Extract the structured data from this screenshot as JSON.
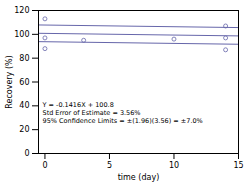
{
  "chart_data": {
    "type": "scatter",
    "xlabel": "time (day)",
    "ylabel": "Recovery (%)",
    "xlim": [
      -0.5,
      15
    ],
    "ylim": [
      0,
      120
    ],
    "xticks": [
      0,
      5,
      10,
      15
    ],
    "yticks": [
      0,
      20,
      40,
      60,
      80,
      100,
      120
    ],
    "annotation": "Y = -0.1416X + 100.8\nStd Error of Estimate = 3.56%\n95% Confidence Limits = ±(1.96)(3.56) = ±7.0%",
    "series": [
      {
        "type": "line",
        "line_style": "solid",
        "color": "#6666aa",
        "x": [
          -0.5,
          15
        ],
        "values": [
          107.8708,
          105.676
        ]
      },
      {
        "type": "line",
        "line_style": "solid",
        "color": "#6666aa",
        "x": [
          -0.5,
          15
        ],
        "values": [
          100.8708,
          98.676
        ]
      },
      {
        "type": "line",
        "line_style": "solid",
        "color": "#6666aa",
        "x": [
          -0.5,
          15
        ],
        "values": [
          93.8708,
          91.676
        ]
      },
      {
        "type": "scatter",
        "marker": "open_circle",
        "color": "#6666aa",
        "x": [
          0,
          0,
          0,
          3,
          10,
          14,
          14,
          14
        ],
        "values": [
          113,
          97,
          88,
          95,
          96,
          107,
          97,
          87
        ]
      }
    ]
  }
}
